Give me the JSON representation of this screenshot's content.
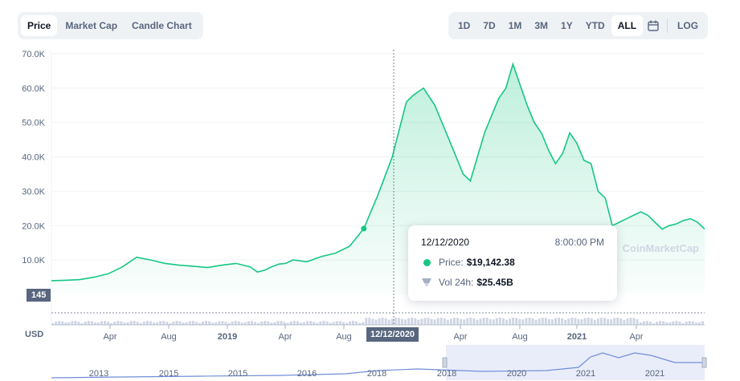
{
  "tabs": [
    "Price",
    "Market Cap",
    "Candle Chart"
  ],
  "active_tab": "Price",
  "ranges": [
    "1D",
    "7D",
    "1M",
    "3M",
    "1Y",
    "YTD",
    "ALL"
  ],
  "active_range": "ALL",
  "log_label": "LOG",
  "currency_label": "USD",
  "watermark": "CoinMarketCap",
  "colors": {
    "line": "#16c784",
    "accent_text": "#0d1421",
    "muted_text": "#58667e",
    "navigator": "#6f8ed8"
  },
  "tooltip": {
    "date": "12/12/2020",
    "time": "8:00:00 PM",
    "price_label": "Price:",
    "price_value": "$19,142.38",
    "vol_label": "Vol 24h:",
    "vol_value": "$25.45B"
  },
  "crosshair_date_label": "12/12/2020",
  "price_badge": "145",
  "navigator_labels": [
    "2013",
    "2015",
    "2015",
    "2016",
    "2018",
    "2018",
    "2020",
    "2021",
    "2021"
  ],
  "chart_data": {
    "type": "area",
    "ylim": [
      0,
      70000
    ],
    "y_ticks": [
      "10.0K",
      "20.0K",
      "30.0K",
      "40.0K",
      "50.0K",
      "60.0K",
      "70.0K"
    ],
    "x_ticks": [
      "Apr",
      "Aug",
      "2019",
      "Apr",
      "Aug",
      "Apr",
      "Aug",
      "2021",
      "Apr"
    ],
    "x": [
      2018.0,
      2018.1,
      2018.2,
      2018.3,
      2018.4,
      2018.5,
      2018.6,
      2018.7,
      2018.8,
      2018.9,
      2019.0,
      2019.1,
      2019.2,
      2019.3,
      2019.4,
      2019.45,
      2019.5,
      2019.55,
      2019.6,
      2019.65,
      2019.7,
      2019.8,
      2019.9,
      2020.0,
      2020.1,
      2020.2,
      2020.3,
      2020.4,
      2020.5,
      2020.55,
      2020.62,
      2020.7,
      2020.8,
      2020.85,
      2020.9,
      2020.95,
      2021.0,
      2021.05,
      2021.1,
      2021.15,
      2021.2,
      2021.25,
      2021.3,
      2021.35,
      2021.4,
      2021.45,
      2021.5,
      2021.55,
      2021.6,
      2021.65,
      2021.7,
      2021.75,
      2021.8,
      2021.85,
      2021.9,
      2021.95,
      2022.0,
      2022.05,
      2022.1,
      2022.15,
      2022.2,
      2022.25,
      2022.3,
      2022.35,
      2022.4,
      2022.45,
      2022.5,
      2022.55,
      2022.6
    ],
    "series": [
      {
        "values": [
          4000,
          4100,
          4300,
          5000,
          6000,
          8000,
          10800,
          10000,
          9000,
          8500,
          8200,
          7800,
          8500,
          9000,
          8000,
          6500,
          7000,
          8000,
          8800,
          9000,
          10000,
          9500,
          11000,
          12000,
          14000,
          19142,
          29000,
          40000,
          56000,
          58000,
          60000,
          55000,
          45000,
          40000,
          35000,
          33000,
          40000,
          47000,
          52000,
          57000,
          60000,
          67000,
          61000,
          55000,
          50000,
          47000,
          42000,
          38000,
          41000,
          47000,
          44000,
          39000,
          38000,
          30000,
          28000,
          20000,
          21000,
          22000,
          23000,
          24000,
          23000,
          21000,
          19000,
          20000,
          20500,
          21500,
          22000,
          21000,
          19000
        ]
      }
    ]
  }
}
